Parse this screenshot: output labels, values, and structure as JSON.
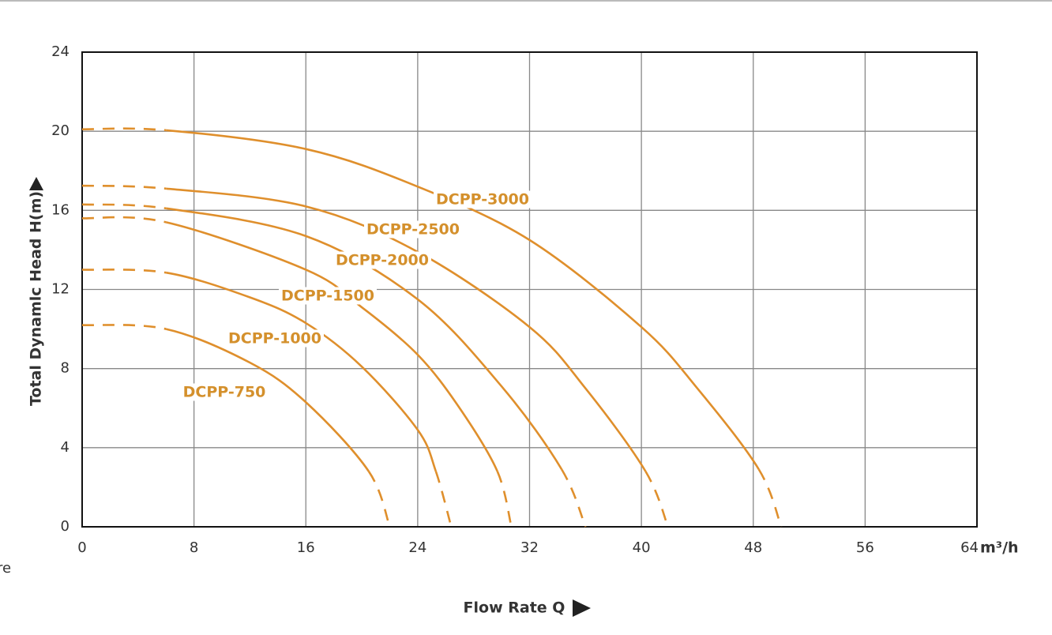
{
  "chart_data": {
    "type": "line",
    "y_label": "Total Dynamlc Head H(m)",
    "x_label": "Flow Rate Q",
    "x_unit": "m³/h",
    "side_text": "re",
    "xlim": [
      0,
      64
    ],
    "xticks": [
      0,
      8,
      16,
      24,
      32,
      40,
      48,
      56,
      64
    ],
    "ylim": [
      0,
      24
    ],
    "yticks": [
      0,
      4,
      8,
      12,
      16,
      20,
      24
    ],
    "grid": true,
    "dash_ends": true,
    "series": [
      {
        "name": "DCPP-3000",
        "color": "#df8f2c",
        "x": [
          0,
          6,
          16,
          24,
          32,
          40,
          44,
          48.4,
          50
        ],
        "values": [
          20.1,
          20.05,
          19.1,
          17.2,
          14.5,
          10.1,
          7.0,
          2.9,
          0
        ]
      },
      {
        "name": "DCPP-2500",
        "color": "#df8f2c",
        "x": [
          0,
          6,
          16,
          24,
          32,
          36,
          40.3,
          41.9
        ],
        "values": [
          17.25,
          17.1,
          16.2,
          13.9,
          10.1,
          7.0,
          2.8,
          0
        ]
      },
      {
        "name": "DCPP-2000",
        "color": "#df8f2c",
        "x": [
          0,
          6,
          16,
          24,
          30,
          34.3,
          36
        ],
        "values": [
          16.3,
          16.1,
          14.7,
          11.5,
          7.1,
          2.9,
          0
        ]
      },
      {
        "name": "DCPP-1500",
        "color": "#df8f2c",
        "x": [
          0,
          6,
          16,
          20,
          24,
          27,
          29.7,
          30.7
        ],
        "values": [
          15.6,
          15.4,
          13.0,
          11.1,
          8.7,
          6.0,
          2.8,
          0
        ]
      },
      {
        "name": "DCPP-1000",
        "color": "#df8f2c",
        "x": [
          0,
          6,
          12,
          16,
          20,
          24,
          25.3,
          26.4
        ],
        "values": [
          13.0,
          12.85,
          11.6,
          10.3,
          8.1,
          4.9,
          2.8,
          0
        ]
      },
      {
        "name": "DCPP-750",
        "color": "#df8f2c",
        "x": [
          0,
          6,
          12,
          16,
          20.5,
          22
        ],
        "values": [
          10.2,
          10.0,
          8.3,
          6.3,
          2.8,
          0
        ]
      }
    ]
  }
}
